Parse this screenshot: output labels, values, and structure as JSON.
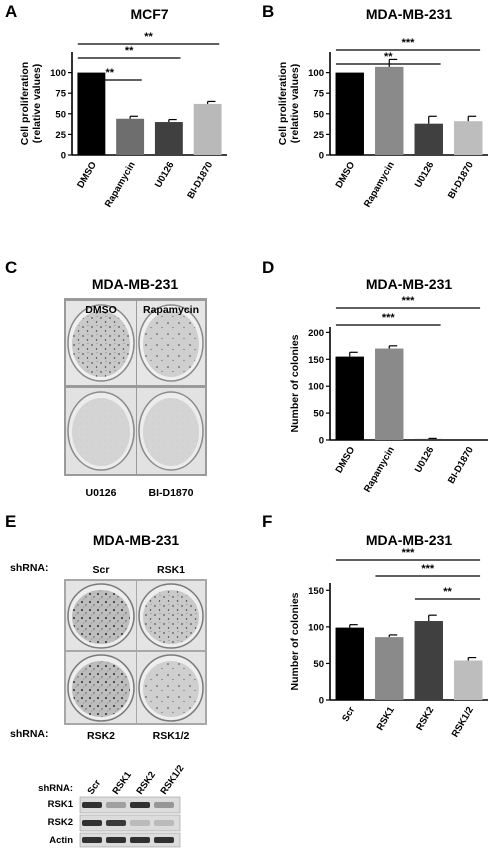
{
  "panels": {
    "A": {
      "letter": "A"
    },
    "B": {
      "letter": "B"
    },
    "C": {
      "letter": "C",
      "title": "MDA-MB-231",
      "wells": [
        "DMSO",
        "Rapamycin",
        "U0126",
        "BI-D1870"
      ]
    },
    "D": {
      "letter": "D"
    },
    "E": {
      "letter": "E",
      "title": "MDA-MB-231",
      "shrna_label": "shRNA:",
      "wells": [
        "Scr",
        "RSK1",
        "RSK2",
        "RSK1/2"
      ],
      "blot": {
        "shrna_label": "shRNA:",
        "lanes": [
          "Scr",
          "RSK1",
          "RSK2",
          "RSK1/2"
        ],
        "rows": [
          "RSK1",
          "RSK2",
          "Actin"
        ],
        "intensity": [
          [
            0.9,
            0.3,
            0.9,
            0.35
          ],
          [
            0.9,
            0.85,
            0.15,
            0.15
          ],
          [
            0.9,
            0.9,
            0.9,
            0.9
          ]
        ]
      }
    },
    "F": {
      "letter": "F"
    }
  },
  "chart_data": [
    {
      "id": "A",
      "type": "bar",
      "title": "MCF7",
      "ylabel": "Cell proliferation (relative values)",
      "categories": [
        "DMSO",
        "Rapamycin",
        "U0126",
        "BI-D1870"
      ],
      "values": [
        100,
        44,
        40,
        62
      ],
      "errors": [
        0,
        3,
        3,
        3
      ],
      "ylim": [
        0,
        125
      ],
      "yticks": [
        0,
        25,
        50,
        75,
        100
      ],
      "colors": [
        "#000000",
        "#6e6e6e",
        "#404040",
        "#b9b9b9"
      ],
      "significance": [
        {
          "from": 0,
          "to": 1,
          "label": "**"
        },
        {
          "from": 0,
          "to": 2,
          "label": "**"
        },
        {
          "from": 0,
          "to": 3,
          "label": "**"
        }
      ]
    },
    {
      "id": "B",
      "type": "bar",
      "title": "MDA-MB-231",
      "ylabel": "Cell proliferation (relative values)",
      "categories": [
        "DMSO",
        "Rapamycin",
        "U0126",
        "BI-D1870"
      ],
      "values": [
        100,
        107,
        38,
        41
      ],
      "errors": [
        0,
        9,
        9,
        6
      ],
      "ylim": [
        0,
        125
      ],
      "yticks": [
        0,
        25,
        50,
        75,
        100
      ],
      "colors": [
        "#000000",
        "#8a8a8a",
        "#404040",
        "#bdbdbd"
      ],
      "significance": [
        {
          "from": 0,
          "to": 2,
          "label": "**"
        },
        {
          "from": 0,
          "to": 3,
          "label": "***"
        }
      ]
    },
    {
      "id": "D",
      "type": "bar",
      "title": "MDA-MB-231",
      "ylabel": "Number of colonies",
      "categories": [
        "DMSO",
        "Rapamycin",
        "U0126",
        "BI-D1870"
      ],
      "values": [
        155,
        170,
        2,
        0
      ],
      "errors": [
        8,
        5,
        1,
        0
      ],
      "ylim": [
        0,
        210
      ],
      "yticks": [
        0,
        50,
        100,
        150,
        200
      ],
      "colors": [
        "#000000",
        "#8a8a8a",
        "#404040",
        "#bdbdbd"
      ],
      "significance": [
        {
          "from": 0,
          "to": 2,
          "label": "***"
        },
        {
          "from": 0,
          "to": 3,
          "label": "***"
        }
      ]
    },
    {
      "id": "F",
      "type": "bar",
      "title": "MDA-MB-231",
      "ylabel": "Number of colonies",
      "categories": [
        "Scr",
        "RSK1",
        "RSK2",
        "RSK1/2"
      ],
      "values": [
        99,
        86,
        108,
        54
      ],
      "errors": [
        4,
        3,
        8,
        4
      ],
      "ylim": [
        0,
        160
      ],
      "yticks": [
        0,
        50,
        100,
        150
      ],
      "colors": [
        "#000000",
        "#8a8a8a",
        "#404040",
        "#bdbdbd"
      ],
      "significance": [
        {
          "from": 2,
          "to": 3,
          "label": "**"
        },
        {
          "from": 1,
          "to": 3,
          "label": "***"
        },
        {
          "from": 0,
          "to": 3,
          "label": "***"
        }
      ]
    }
  ]
}
